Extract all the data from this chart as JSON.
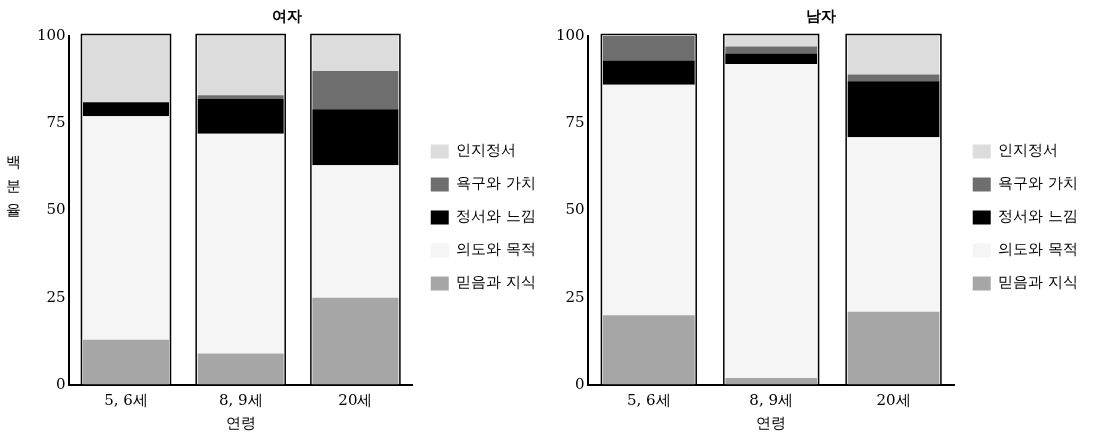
{
  "chart_data": [
    {
      "type": "bar",
      "title": "여자",
      "xlabel": "연령",
      "ylabel": "백분율",
      "categories": [
        "5, 6세",
        "8, 9세",
        "20세"
      ],
      "stacked": true,
      "legend": "right",
      "grid": false,
      "ylim": [
        0,
        100
      ],
      "yticks": [
        0,
        25,
        50,
        75,
        100
      ],
      "series": [
        {
          "name": "믿음과 지식",
          "color": "#a6a6a6",
          "values": [
            13,
            9,
            25
          ]
        },
        {
          "name": "의도와 목적",
          "color": "#f5f5f5",
          "values": [
            64,
            63,
            38
          ]
        },
        {
          "name": "정서와 느낌",
          "color": "#000000",
          "values": [
            4,
            10,
            16
          ]
        },
        {
          "name": "욕구와 가치",
          "color": "#6e6e6e",
          "values": [
            0,
            1,
            11
          ]
        },
        {
          "name": "인지정서",
          "color": "#dcdcdc",
          "values": [
            19,
            17,
            10
          ]
        }
      ]
    },
    {
      "type": "bar",
      "title": "남자",
      "xlabel": "연령",
      "categories": [
        "5, 6세",
        "8, 9세",
        "20세"
      ],
      "stacked": true,
      "legend": "right",
      "grid": false,
      "ylim": [
        0,
        100
      ],
      "yticks": [
        0,
        25,
        50,
        75,
        100
      ],
      "series": [
        {
          "name": "믿음과 지식",
          "color": "#a6a6a6",
          "values": [
            20,
            2,
            21
          ]
        },
        {
          "name": "의도와 목적",
          "color": "#f5f5f5",
          "values": [
            66,
            90,
            50
          ]
        },
        {
          "name": "정서와 느낌",
          "color": "#000000",
          "values": [
            7,
            3,
            16
          ]
        },
        {
          "name": "욕구와 가치",
          "color": "#6e6e6e",
          "values": [
            7,
            2,
            2
          ]
        },
        {
          "name": "인지정서",
          "color": "#dcdcdc",
          "values": [
            0,
            3,
            11
          ]
        }
      ]
    }
  ]
}
